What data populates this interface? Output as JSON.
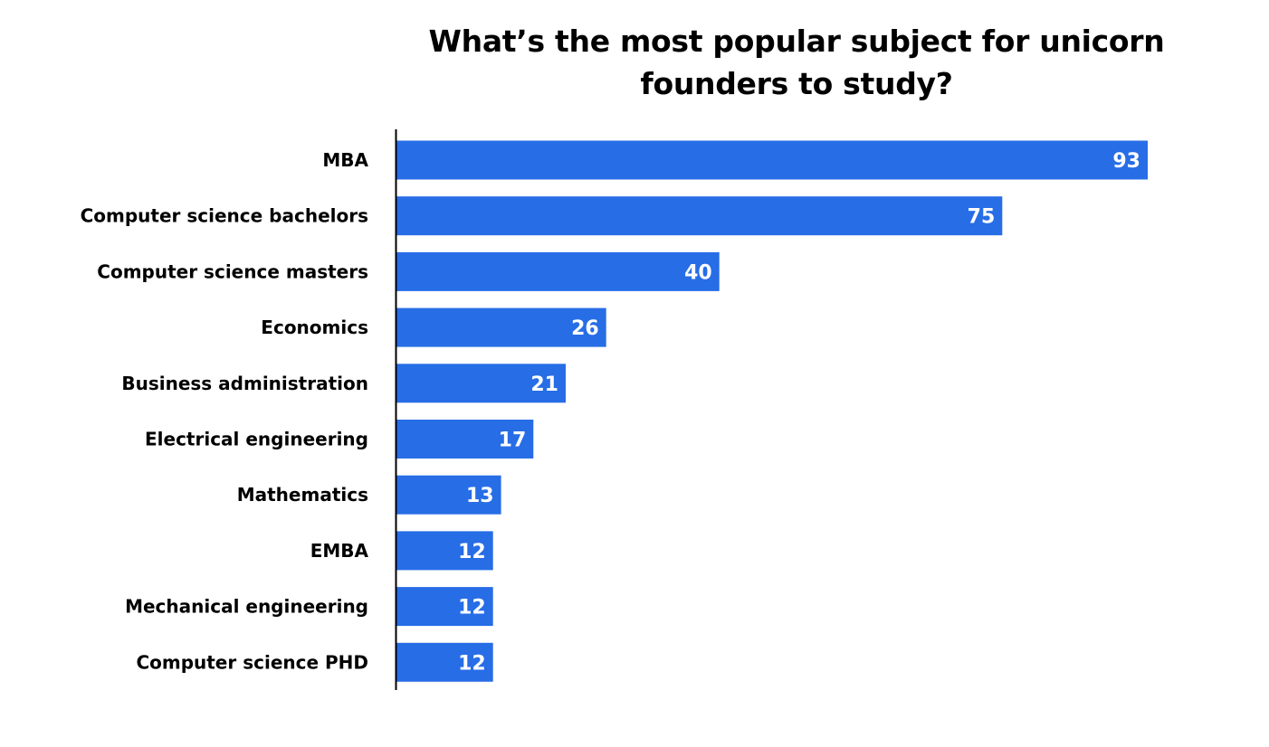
{
  "chart_data": {
    "type": "bar",
    "orientation": "horizontal",
    "title": "What’s the most popular subject for unicorn founders to study?",
    "xlabel": "",
    "ylabel": "",
    "categories": [
      "MBA",
      "Computer science bachelors",
      "Computer science masters",
      "Economics",
      "Business administration",
      "Electrical engineering",
      "Mathematics",
      "EMBA",
      "Mechanical engineering",
      "Computer science PHD"
    ],
    "values": [
      93,
      75,
      40,
      26,
      21,
      17,
      13,
      12,
      12,
      12
    ],
    "xlim": [
      0,
      100
    ],
    "grid": false,
    "legend": "none",
    "data_labels": "inside-end",
    "colors": {
      "bar": "#276DE6",
      "axis": "#000000",
      "data_label": "#FFFFFF"
    }
  }
}
